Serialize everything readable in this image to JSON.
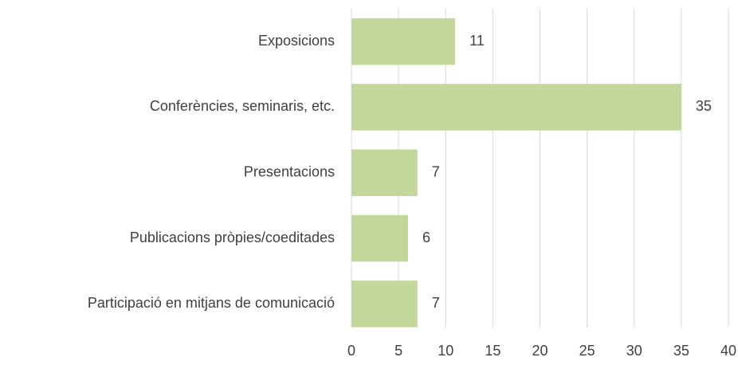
{
  "chart_data": {
    "type": "bar",
    "orientation": "horizontal",
    "categories": [
      "Exposicions",
      "Conferències, seminaris, etc.",
      "Presentacions",
      "Publicacions pròpies/coeditades",
      "Participació en mitjans de comunicació"
    ],
    "values": [
      11,
      35,
      7,
      6,
      7
    ],
    "color": "#c4d79b",
    "xlim": [
      0,
      40
    ],
    "xticks": [
      0,
      5,
      10,
      15,
      20,
      25,
      30,
      35,
      40
    ],
    "grid": true
  }
}
